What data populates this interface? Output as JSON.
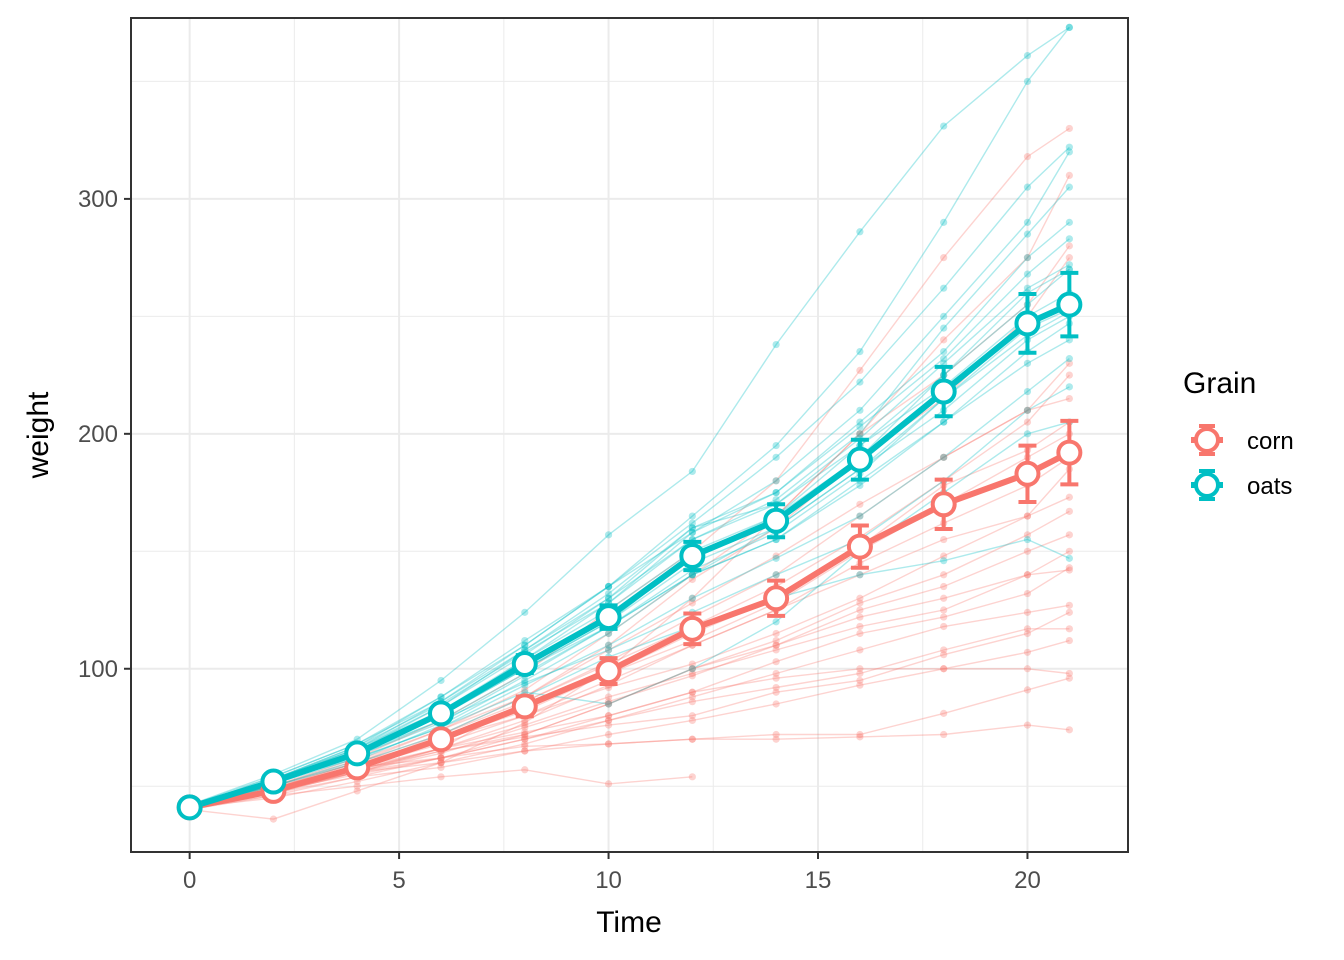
{
  "chart_data": {
    "type": "line",
    "xlabel": "Time",
    "ylabel": "weight",
    "xlim": [
      -1.4,
      22.4
    ],
    "ylim": [
      22,
      377
    ],
    "x_ticks": [
      0,
      5,
      10,
      15,
      20
    ],
    "x_tick_labels": [
      "0",
      "5",
      "10",
      "15",
      "20"
    ],
    "y_ticks": [
      100,
      200,
      300
    ],
    "y_tick_labels": [
      "100",
      "200",
      "300"
    ],
    "x_minor": [
      2.5,
      7.5,
      12.5,
      17.5
    ],
    "y_minor": [
      50,
      150,
      250,
      350
    ],
    "grid": true,
    "legend": {
      "title": "Grain",
      "placement": "right"
    },
    "times": [
      0,
      2,
      4,
      6,
      8,
      10,
      12,
      14,
      16,
      18,
      20,
      21
    ],
    "series": [
      {
        "name": "corn",
        "color": "#F8766D",
        "mean": [
          41,
          48,
          58,
          70,
          84,
          99,
          117,
          130,
          152,
          170,
          183,
          192
        ],
        "se": [
          0.5,
          1.2,
          2.0,
          3.0,
          4.2,
          5.5,
          6.5,
          7.5,
          9.0,
          10.5,
          12.0,
          13.5
        ],
        "individuals": [
          [
            41,
            47,
            58,
            72,
            88,
            110,
            138,
            160,
            190,
            215,
            250,
            275
          ],
          [
            40,
            49,
            60,
            74,
            91,
            115,
            140,
            165,
            200,
            240,
            275,
            310
          ],
          [
            42,
            50,
            62,
            78,
            98,
            125,
            150,
            180,
            227,
            275,
            318,
            330
          ],
          [
            41,
            48,
            58,
            66,
            86,
            102,
            118,
            135,
            156,
            180,
            205,
            225
          ],
          [
            41,
            49,
            59,
            70,
            84,
            98,
            115,
            130,
            152,
            178,
            193,
            205
          ],
          [
            40,
            48,
            56,
            66,
            78,
            93,
            110,
            125,
            145,
            162,
            178,
            190
          ],
          [
            42,
            49,
            56,
            62,
            72,
            85,
            100,
            112,
            128,
            140,
            157,
            167
          ],
          [
            41,
            47,
            54,
            58,
            65,
            68,
            70,
            70,
            71,
            72,
            76,
            74
          ],
          [
            41,
            45,
            52,
            60,
            68,
            78,
            88,
            98,
            108,
            118,
            124,
            127
          ],
          [
            40,
            48,
            57,
            66,
            76,
            88,
            98,
            108,
            118,
            125,
            140,
            150
          ],
          [
            41,
            46,
            54,
            62,
            70,
            80,
            90,
            96,
            100,
            100,
            100,
            98
          ],
          [
            42,
            50,
            58,
            62,
            67,
            68,
            70,
            72,
            72,
            81,
            91,
            96
          ],
          [
            40,
            46,
            50,
            54,
            57,
            51,
            54,
            null,
            null,
            null,
            null,
            null
          ],
          [
            41,
            48,
            56,
            65,
            72,
            85,
            100,
            110,
            125,
            135,
            150,
            157
          ],
          [
            41,
            49,
            60,
            72,
            86,
            103,
            122,
            140,
            165,
            190,
            210,
            230
          ],
          [
            40,
            47,
            56,
            64,
            75,
            86,
            97,
            110,
            122,
            130,
            140,
            142
          ],
          [
            41,
            48,
            58,
            68,
            80,
            95,
            110,
            125,
            140,
            155,
            165,
            173
          ],
          [
            42,
            48,
            55,
            62,
            70,
            78,
            86,
            92,
            98,
            108,
            117,
            117
          ],
          [
            40,
            36,
            48,
            60,
            77,
            100,
            130,
            165,
            200,
            225,
            255,
            280
          ],
          [
            41,
            48,
            57,
            66,
            73,
            80,
            90,
            103,
            115,
            122,
            132,
            143
          ],
          [
            40,
            48,
            58,
            70,
            80,
            92,
            102,
            115,
            130,
            148,
            165,
            185
          ],
          [
            41,
            50,
            61,
            74,
            88,
            108,
            128,
            148,
            170,
            190,
            210,
            215
          ],
          [
            41,
            49,
            57,
            65,
            71,
            76,
            80,
            90,
            95,
            106,
            115,
            124
          ],
          [
            42,
            50,
            60,
            70,
            82,
            98,
            112,
            128,
            150,
            170,
            190,
            200
          ],
          [
            41,
            47,
            56,
            60,
            65,
            72,
            78,
            85,
            93,
            100,
            107,
            112
          ]
        ]
      },
      {
        "name": "oats",
        "color": "#00BFC4",
        "mean": [
          41,
          52,
          64,
          81,
          102,
          122,
          148,
          163,
          189,
          218,
          247,
          255
        ],
        "se": [
          0.4,
          1.0,
          1.8,
          2.8,
          3.8,
          5.0,
          6.0,
          7.0,
          8.5,
          10.5,
          12.5,
          13.5
        ],
        "individuals": [
          [
            41,
            53,
            67,
            88,
            112,
            135,
            165,
            195,
            235,
            290,
            350,
            373
          ],
          [
            40,
            52,
            66,
            86,
            110,
            135,
            162,
            190,
            222,
            262,
            305,
            322
          ],
          [
            42,
            55,
            70,
            95,
            124,
            157,
            184,
            238,
            286,
            331,
            361,
            373
          ],
          [
            41,
            51,
            65,
            81,
            104,
            128,
            158,
            180,
            210,
            250,
            290,
            320
          ],
          [
            41,
            53,
            66,
            84,
            106,
            130,
            160,
            175,
            205,
            235,
            275,
            290
          ],
          [
            40,
            51,
            63,
            80,
            100,
            120,
            148,
            165,
            190,
            225,
            260,
            270
          ],
          [
            41,
            52,
            64,
            82,
            104,
            125,
            150,
            165,
            195,
            220,
            250,
            260
          ],
          [
            41,
            52,
            63,
            78,
            98,
            118,
            140,
            160,
            185,
            210,
            240,
            250
          ],
          [
            42,
            54,
            68,
            88,
            110,
            135,
            158,
            175,
            203,
            232,
            268,
            283
          ],
          [
            41,
            50,
            61,
            76,
            95,
            115,
            140,
            155,
            180,
            205,
            235,
            247
          ],
          [
            40,
            52,
            65,
            84,
            108,
            132,
            160,
            170,
            195,
            225,
            255,
            270
          ],
          [
            41,
            51,
            62,
            75,
            93,
            110,
            130,
            147,
            165,
            190,
            218,
            232
          ],
          [
            41,
            53,
            66,
            82,
            100,
            118,
            142,
            158,
            183,
            215,
            245,
            253
          ],
          [
            42,
            53,
            64,
            78,
            94,
            108,
            124,
            140,
            155,
            180,
            210,
            220
          ],
          [
            41,
            50,
            60,
            72,
            88,
            105,
            118,
            130,
            140,
            146,
            155,
            147
          ],
          [
            40,
            52,
            62,
            75,
            90,
            85,
            100,
            120,
            150,
            175,
            200,
            205
          ],
          [
            41,
            53,
            67,
            85,
            107,
            128,
            155,
            172,
            200,
            245,
            285,
            305
          ],
          [
            42,
            52,
            64,
            80,
            100,
            120,
            145,
            160,
            185,
            215,
            242,
            252
          ],
          [
            41,
            51,
            63,
            77,
            97,
            118,
            140,
            155,
            178,
            205,
            230,
            240
          ],
          [
            41,
            54,
            68,
            86,
            108,
            130,
            155,
            170,
            198,
            230,
            262,
            272
          ]
        ]
      }
    ]
  }
}
